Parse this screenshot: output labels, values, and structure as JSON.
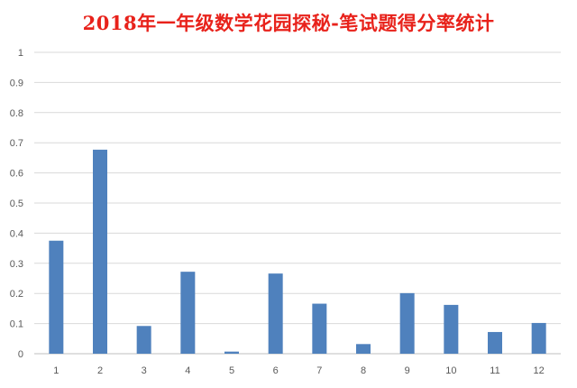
{
  "chart_data": {
    "type": "bar",
    "title": "2018年一年级数学花园探秘-笔试题得分率统计",
    "xlabel": "",
    "ylabel": "",
    "categories": [
      "1",
      "2",
      "3",
      "4",
      "5",
      "6",
      "7",
      "8",
      "9",
      "10",
      "11",
      "12"
    ],
    "values": [
      0.375,
      0.677,
      0.092,
      0.272,
      0.007,
      0.266,
      0.166,
      0.032,
      0.201,
      0.162,
      0.072,
      0.102
    ],
    "ylim": [
      0,
      1
    ],
    "yticks": [
      "0",
      "0.1",
      "0.2",
      "0.3",
      "0.4",
      "0.5",
      "0.6",
      "0.7",
      "0.8",
      "0.9",
      "1"
    ],
    "grid": true,
    "legend": "none",
    "colors": {
      "bar": "#4f81bd",
      "grid": "#d9d9d9",
      "axis": "#bfbfbf",
      "title": "#e8221b"
    }
  }
}
